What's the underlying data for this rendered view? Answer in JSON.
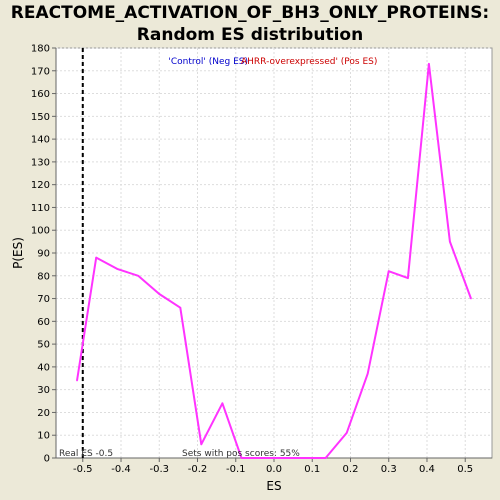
{
  "chart_data": {
    "type": "line",
    "title_lines": [
      "REACTOME_ACTIVATION_OF_BH3_ONLY_PROTEINS:",
      "Random ES distribution"
    ],
    "xlabel": "ES",
    "ylabel": "P(ES)",
    "xlim": [
      -0.57,
      0.57
    ],
    "ylim": [
      0,
      180
    ],
    "xticks": [
      -0.5,
      -0.4,
      -0.3,
      -0.2,
      -0.1,
      0.0,
      0.1,
      0.2,
      0.3,
      0.4,
      0.5
    ],
    "xtick_labels": [
      "-0.5",
      "-0.4",
      "-0.3",
      "-0.2",
      "-0.1",
      "0.0",
      "0.1",
      "0.2",
      "0.3",
      "0.4",
      "0.5"
    ],
    "yticks": [
      0,
      10,
      20,
      30,
      40,
      50,
      60,
      70,
      80,
      90,
      100,
      110,
      120,
      130,
      140,
      150,
      160,
      170,
      180
    ],
    "grid": true,
    "series": [
      {
        "color": "#FF33FF",
        "x": [
          -0.515,
          -0.465,
          -0.41,
          -0.355,
          -0.3,
          -0.245,
          -0.19,
          -0.135,
          -0.085,
          -0.03,
          0.025,
          0.08,
          0.135,
          0.19,
          0.245,
          0.3,
          0.35,
          0.405,
          0.46,
          0.515
        ],
        "y": [
          34,
          88,
          83,
          80,
          72,
          66,
          6,
          24,
          0,
          0,
          0,
          0,
          0,
          11,
          37,
          82,
          79,
          173,
          95,
          70
        ]
      }
    ],
    "reference_line": {
      "x": -0.5,
      "style": "dashed",
      "color": "#000000",
      "label": "Real ES -0.5"
    },
    "legend": {
      "placement": "top-center",
      "entries": [
        {
          "label": "'Control' (Neg ES)",
          "color": "#0000CC"
        },
        {
          "label": "AHRR-overexpressed' (Pos ES)",
          "color": "#CC0000"
        }
      ]
    },
    "annotation": "Sets with pos scores: 55%"
  }
}
